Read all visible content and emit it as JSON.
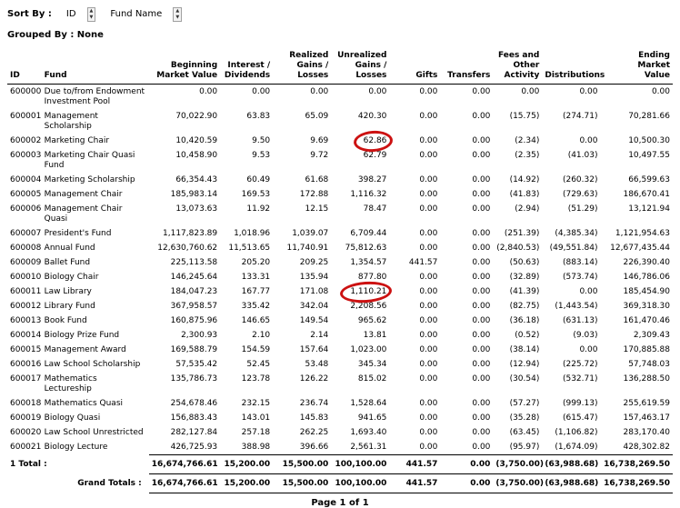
{
  "controls": {
    "sort_by_label": "Sort By :",
    "sort_fields": [
      {
        "label": "ID"
      },
      {
        "label": "Fund Name"
      }
    ],
    "grouped_by_label": "Grouped By : None"
  },
  "table": {
    "columns": [
      {
        "label": "ID",
        "align": "left"
      },
      {
        "label": "Fund",
        "align": "left"
      },
      {
        "label": "Beginning\nMarket Value",
        "align": "right"
      },
      {
        "label": "Interest /\nDividends",
        "align": "right"
      },
      {
        "label": "Realized\nGains / Losses",
        "align": "right"
      },
      {
        "label": "Unrealized\nGains / Losses",
        "align": "right"
      },
      {
        "label": "Gifts",
        "align": "right"
      },
      {
        "label": "Transfers",
        "align": "right"
      },
      {
        "label": "Fees and\nOther\nActivity",
        "align": "right"
      },
      {
        "label": "Distributions",
        "align": "right"
      },
      {
        "label": "Ending Market\nValue",
        "align": "right"
      }
    ],
    "rows": [
      [
        "600000",
        "Due to/from Endowment Investment Pool",
        "0.00",
        "0.00",
        "0.00",
        "0.00",
        "0.00",
        "0.00",
        "0.00",
        "0.00",
        "0.00"
      ],
      [
        "600001",
        "Management Scholarship",
        "70,022.90",
        "63.83",
        "65.09",
        "420.30",
        "0.00",
        "0.00",
        "(15.75)",
        "(274.71)",
        "70,281.66"
      ],
      [
        "600002",
        "Marketing Chair",
        "10,420.59",
        "9.50",
        "9.69",
        "62.86",
        "0.00",
        "0.00",
        "(2.34)",
        "0.00",
        "10,500.30"
      ],
      [
        "600003",
        "Marketing Chair Quasi Fund",
        "10,458.90",
        "9.53",
        "9.72",
        "62.79",
        "0.00",
        "0.00",
        "(2.35)",
        "(41.03)",
        "10,497.55"
      ],
      [
        "600004",
        "Marketing Scholarship",
        "66,354.43",
        "60.49",
        "61.68",
        "398.27",
        "0.00",
        "0.00",
        "(14.92)",
        "(260.32)",
        "66,599.63"
      ],
      [
        "600005",
        "Management Chair",
        "185,983.14",
        "169.53",
        "172.88",
        "1,116.32",
        "0.00",
        "0.00",
        "(41.83)",
        "(729.63)",
        "186,670.41"
      ],
      [
        "600006",
        "Management Chair Quasi",
        "13,073.63",
        "11.92",
        "12.15",
        "78.47",
        "0.00",
        "0.00",
        "(2.94)",
        "(51.29)",
        "13,121.94"
      ],
      [
        "600007",
        "President's Fund",
        "1,117,823.89",
        "1,018.96",
        "1,039.07",
        "6,709.44",
        "0.00",
        "0.00",
        "(251.39)",
        "(4,385.34)",
        "1,121,954.63"
      ],
      [
        "600008",
        "Annual Fund",
        "12,630,760.62",
        "11,513.65",
        "11,740.91",
        "75,812.63",
        "0.00",
        "0.00",
        "(2,840.53)",
        "(49,551.84)",
        "12,677,435.44"
      ],
      [
        "600009",
        "Ballet Fund",
        "225,113.58",
        "205.20",
        "209.25",
        "1,354.57",
        "441.57",
        "0.00",
        "(50.63)",
        "(883.14)",
        "226,390.40"
      ],
      [
        "600010",
        "Biology Chair",
        "146,245.64",
        "133.31",
        "135.94",
        "877.80",
        "0.00",
        "0.00",
        "(32.89)",
        "(573.74)",
        "146,786.06"
      ],
      [
        "600011",
        "Law Library",
        "184,047.23",
        "167.77",
        "171.08",
        "1,110.21",
        "0.00",
        "0.00",
        "(41.39)",
        "0.00",
        "185,454.90"
      ],
      [
        "600012",
        "Library Fund",
        "367,958.57",
        "335.42",
        "342.04",
        "2,208.56",
        "0.00",
        "0.00",
        "(82.75)",
        "(1,443.54)",
        "369,318.30"
      ],
      [
        "600013",
        "Book Fund",
        "160,875.96",
        "146.65",
        "149.54",
        "965.62",
        "0.00",
        "0.00",
        "(36.18)",
        "(631.13)",
        "161,470.46"
      ],
      [
        "600014",
        "Biology Prize Fund",
        "2,300.93",
        "2.10",
        "2.14",
        "13.81",
        "0.00",
        "0.00",
        "(0.52)",
        "(9.03)",
        "2,309.43"
      ],
      [
        "600015",
        "Management Award",
        "169,588.79",
        "154.59",
        "157.64",
        "1,023.00",
        "0.00",
        "0.00",
        "(38.14)",
        "0.00",
        "170,885.88"
      ],
      [
        "600016",
        "Law School Scholarship",
        "57,535.42",
        "52.45",
        "53.48",
        "345.34",
        "0.00",
        "0.00",
        "(12.94)",
        "(225.72)",
        "57,748.03"
      ],
      [
        "600017",
        "Mathematics Lectureship",
        "135,786.73",
        "123.78",
        "126.22",
        "815.02",
        "0.00",
        "0.00",
        "(30.54)",
        "(532.71)",
        "136,288.50"
      ],
      [
        "600018",
        "Mathematics Quasi",
        "254,678.46",
        "232.15",
        "236.74",
        "1,528.64",
        "0.00",
        "0.00",
        "(57.27)",
        "(999.13)",
        "255,619.59"
      ],
      [
        "600019",
        "Biology Quasi",
        "156,883.43",
        "143.01",
        "145.83",
        "941.65",
        "0.00",
        "0.00",
        "(35.28)",
        "(615.47)",
        "157,463.17"
      ],
      [
        "600020",
        "Law School Unrestricted",
        "282,127.84",
        "257.18",
        "262.25",
        "1,693.40",
        "0.00",
        "0.00",
        "(63.45)",
        "(1,106.82)",
        "283,170.40"
      ],
      [
        "600021",
        "Biology Lecture",
        "426,725.93",
        "388.98",
        "396.66",
        "2,561.31",
        "0.00",
        "0.00",
        "(95.97)",
        "(1,674.09)",
        "428,302.82"
      ]
    ],
    "total_row": {
      "label": "1 Total :",
      "values": [
        "16,674,766.61",
        "15,200.00",
        "15,500.00",
        "100,100.00",
        "441.57",
        "0.00",
        "(3,750.00)",
        "(63,988.68)",
        "16,738,269.50"
      ]
    },
    "grand_total_row": {
      "label": "Grand Totals :",
      "values": [
        "16,674,766.61",
        "15,200.00",
        "15,500.00",
        "100,100.00",
        "441.57",
        "0.00",
        "(3,750.00)",
        "(63,988.68)",
        "16,738,269.50"
      ]
    }
  },
  "annotations": {
    "color": "#cc1111",
    "circled": [
      {
        "row": 2,
        "col": 5,
        "value": "62.86"
      },
      {
        "row": 11,
        "col": 5,
        "value": "1,110.21"
      }
    ]
  },
  "footer": {
    "page_label": "Page 1 of 1"
  }
}
